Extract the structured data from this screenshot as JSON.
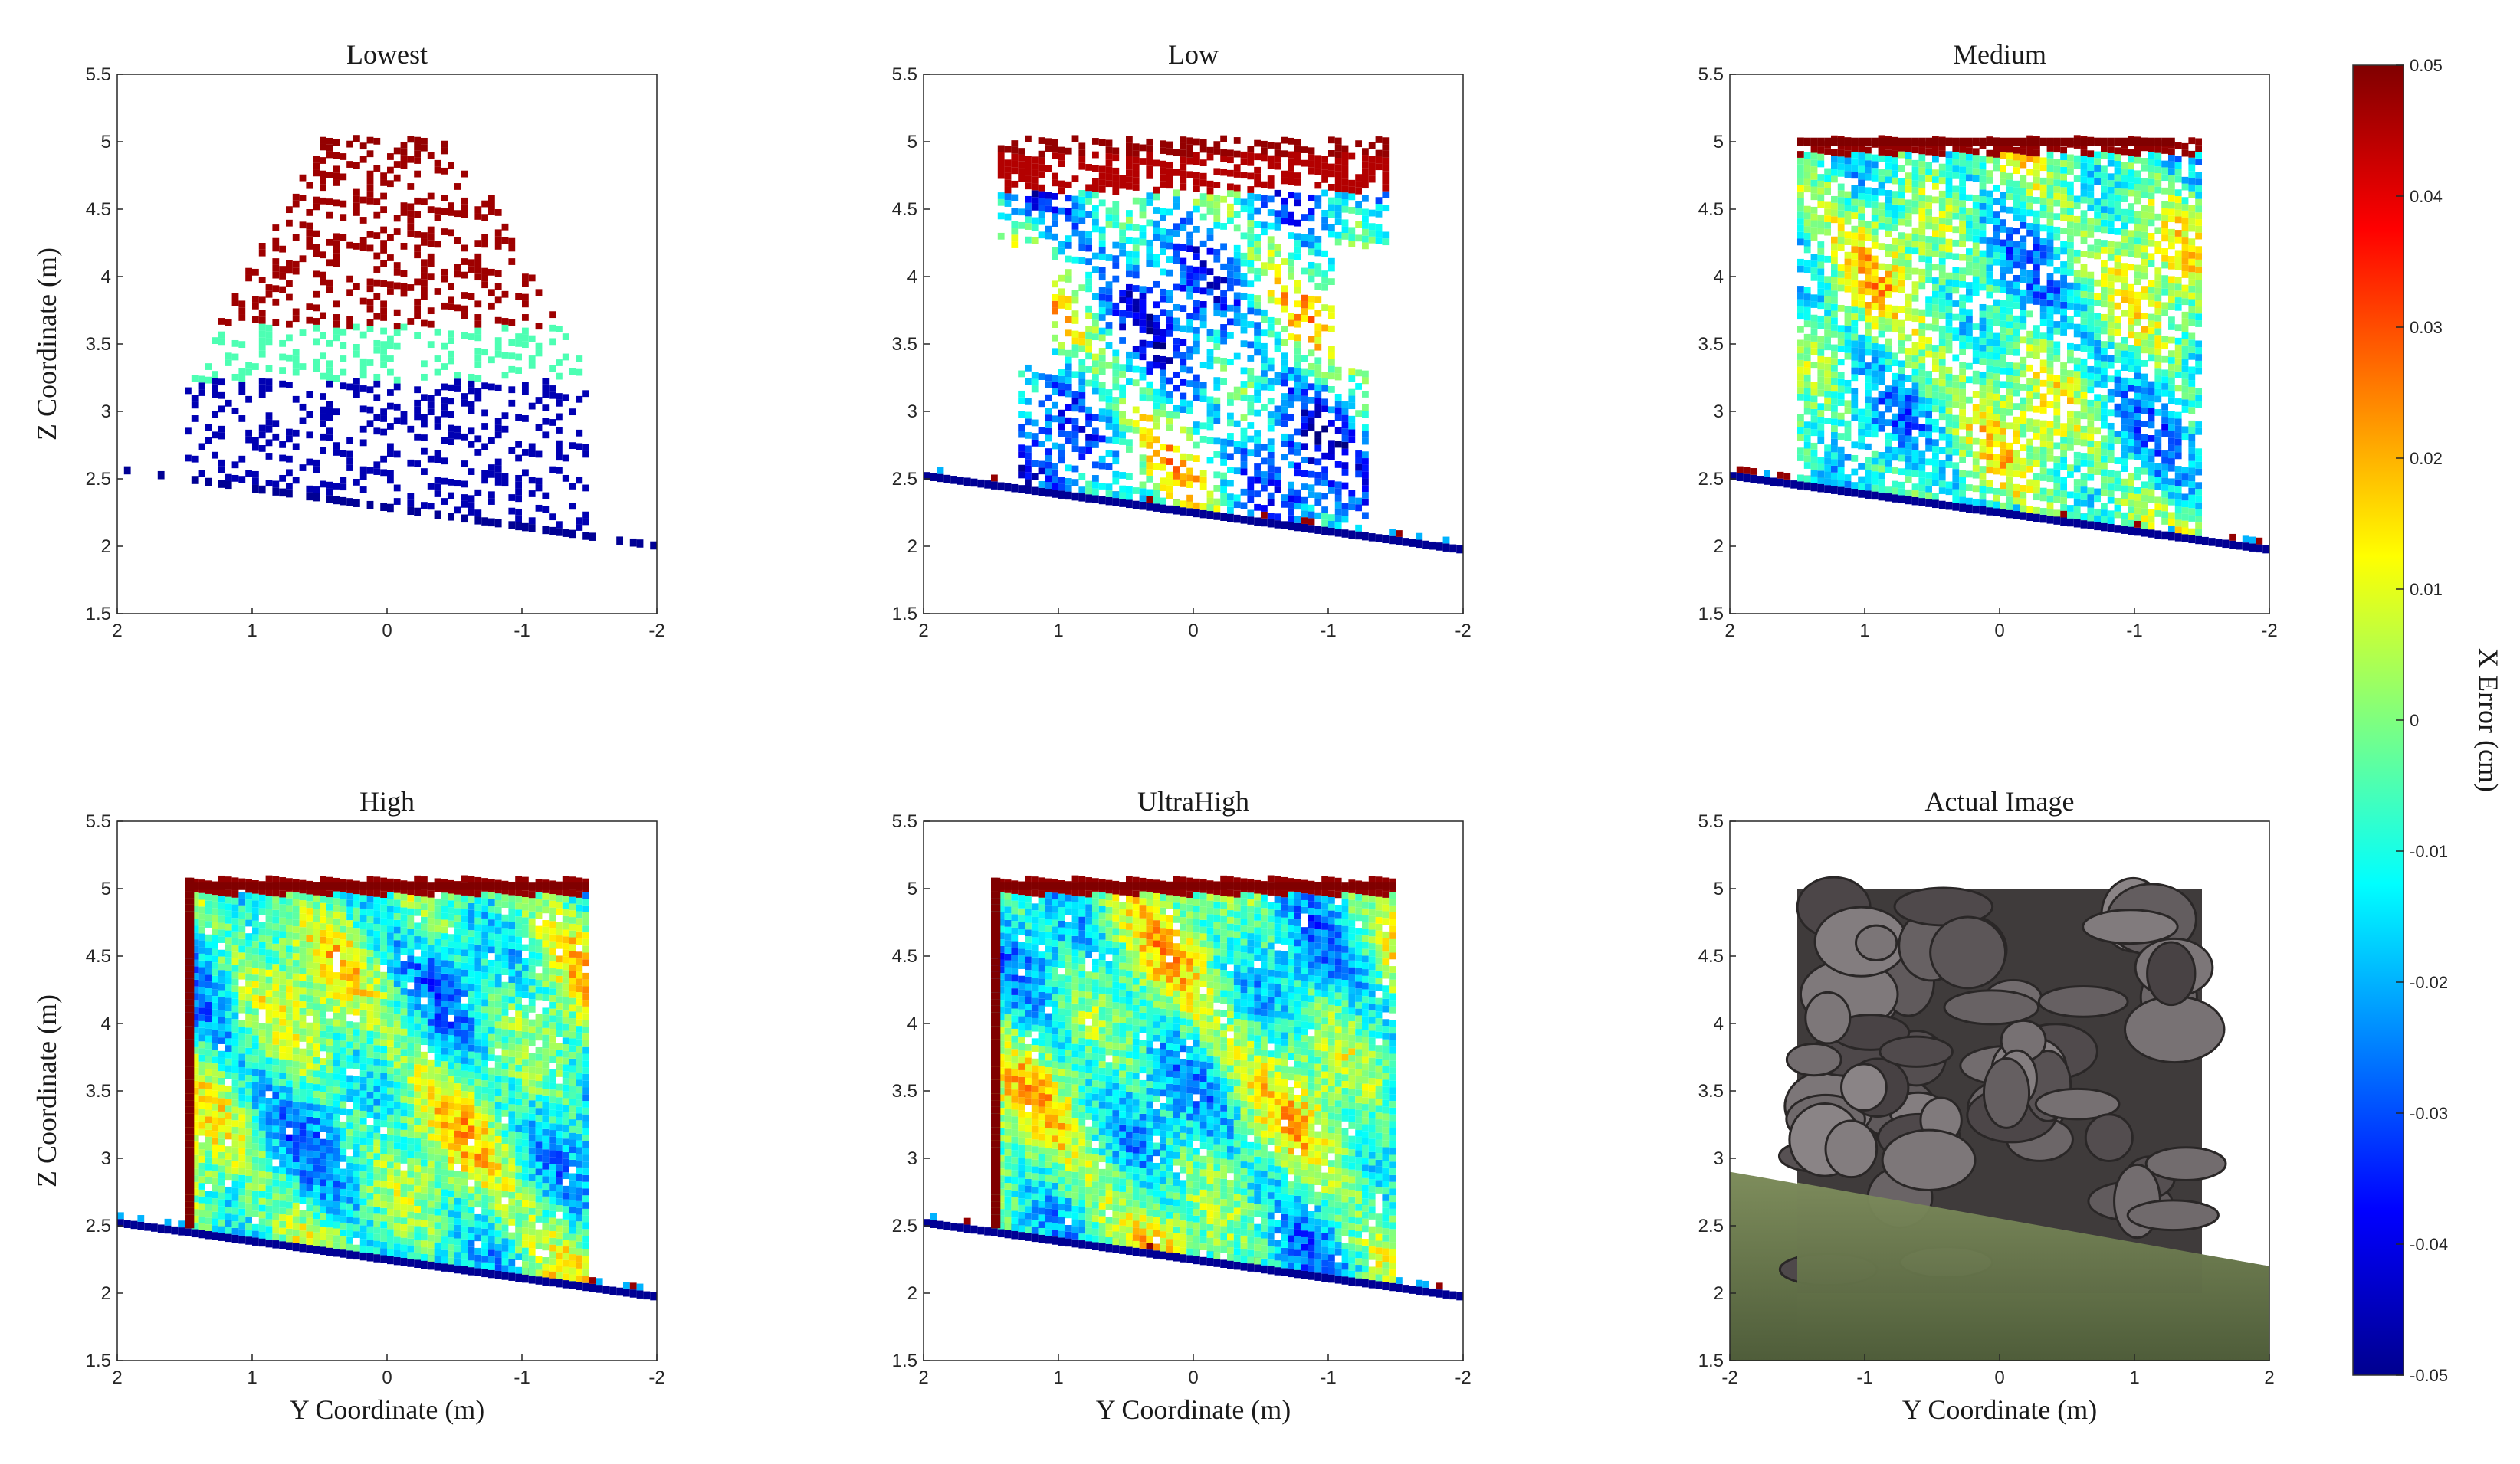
{
  "figure": {
    "colorbar": {
      "label": "X Error (cm)",
      "min": -0.05,
      "max": 0.05,
      "ticks": [
        "0.05",
        "0.04",
        "0.03",
        "0.02",
        "0.01",
        "0",
        "-0.01",
        "-0.02",
        "-0.03",
        "-0.04",
        "-0.05"
      ],
      "colormap": "jet"
    }
  },
  "chart_data": [
    {
      "type": "heatmap",
      "title": "Lowest",
      "xlabel": "",
      "ylabel": "Z Coordinate (m)",
      "xlim": [
        2,
        -2
      ],
      "ylim": [
        1.5,
        5.5
      ],
      "xticks": [
        "2",
        "1",
        "0",
        "-1",
        "-2"
      ],
      "yticks": [
        "5.5",
        "5",
        "4.5",
        "4",
        "3.5",
        "3",
        "2.5",
        "2",
        "1.5"
      ],
      "density": "sparse",
      "top_z": 5.0,
      "ground_line": [
        [
          2.0,
          2.6
        ],
        [
          -1.85,
          2.05
        ]
      ],
      "value_note": "scattered cells; upper region mostly 0.05 (dark red), lower region mostly -0.05 (dark blue)"
    },
    {
      "type": "heatmap",
      "title": "Low",
      "xlabel": "",
      "ylabel": "",
      "xlim": [
        2,
        -2
      ],
      "ylim": [
        1.5,
        5.5
      ],
      "xticks": [
        "2",
        "1",
        "0",
        "-1",
        "-2"
      ],
      "yticks": [
        "5.5",
        "5",
        "4.5",
        "4",
        "3.5",
        "3",
        "2.5",
        "2",
        "1.5"
      ],
      "density": "medium",
      "top_z": 5.0,
      "ground_line": [
        [
          2.0,
          2.55
        ],
        [
          -2.0,
          2.0
        ]
      ],
      "value_note": "top band 0.05; centre mixed -0.05 to 0.02"
    },
    {
      "type": "heatmap",
      "title": "Medium",
      "xlabel": "",
      "ylabel": "",
      "xlim": [
        2,
        -2
      ],
      "ylim": [
        1.5,
        5.5
      ],
      "xticks": [
        "2",
        "1",
        "0",
        "-1",
        "-2"
      ],
      "yticks": [
        "5.5",
        "5",
        "4.5",
        "4",
        "3.5",
        "3",
        "2.5",
        "2",
        "1.5"
      ],
      "density": "dense",
      "top_z": 5.0,
      "ground_line": [
        [
          2.0,
          2.55
        ],
        [
          -2.0,
          2.0
        ]
      ]
    },
    {
      "type": "heatmap",
      "title": "High",
      "xlabel": "Y Coordinate (m)",
      "ylabel": "Z Coordinate (m)",
      "xlim": [
        2,
        -2
      ],
      "ylim": [
        1.5,
        5.5
      ],
      "xticks": [
        "2",
        "1",
        "0",
        "-1",
        "-2"
      ],
      "yticks": [
        "5.5",
        "5",
        "4.5",
        "4",
        "3.5",
        "3",
        "2.5",
        "2",
        "1.5"
      ],
      "density": "full",
      "top_z": 5.05,
      "left_edge_y": 1.5,
      "right_edge_y": -1.5,
      "ground_line": [
        [
          2.0,
          2.55
        ],
        [
          -2.0,
          2.0
        ]
      ]
    },
    {
      "type": "heatmap",
      "title": "UltraHigh",
      "xlabel": "Y Coordinate (m)",
      "ylabel": "",
      "xlim": [
        2,
        -2
      ],
      "ylim": [
        1.5,
        5.5
      ],
      "xticks": [
        "2",
        "1",
        "0",
        "-1",
        "-2"
      ],
      "yticks": [
        "5.5",
        "5",
        "4.5",
        "4",
        "3.5",
        "3",
        "2.5",
        "2",
        "1.5"
      ],
      "density": "full",
      "top_z": 5.05,
      "left_edge_y": 1.5,
      "right_edge_y": -1.5,
      "ground_line": [
        [
          2.0,
          2.55
        ],
        [
          -2.0,
          2.0
        ]
      ]
    },
    {
      "type": "image",
      "title": "Actual Image",
      "xlabel": "Y Coordinate (m)",
      "ylabel": "",
      "xlim": [
        -2,
        2
      ],
      "ylim": [
        1.5,
        5.5
      ],
      "xticks": [
        "-2",
        "-1",
        "0",
        "1",
        "2"
      ],
      "yticks": [
        "5.5",
        "5",
        "4.5",
        "4",
        "3.5",
        "3",
        "2.5",
        "2",
        "1.5"
      ],
      "rock_wall": {
        "y_range": [
          -1.5,
          1.5
        ],
        "z_range": [
          2.0,
          5.0
        ]
      },
      "ground_line": [
        [
          -2.0,
          2.9
        ],
        [
          2.0,
          2.2
        ]
      ]
    }
  ]
}
